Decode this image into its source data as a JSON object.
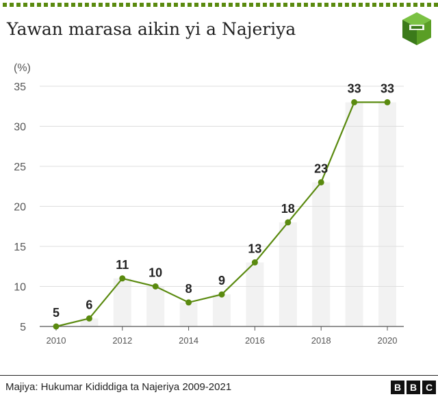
{
  "title": "Yawan marasa aikin yi a Najeriya",
  "source": "Majiya: Hukumar Kididdiga ta Najeriya 2009-2021",
  "brand": {
    "letters": [
      "B",
      "B",
      "C"
    ]
  },
  "logo_icon": "bbc-visual-journalism-cube-icon",
  "colors": {
    "line": "#5a8a0f",
    "marker": "#5a8a0f",
    "band": "#f2f2f2",
    "grid": "#dddddd",
    "accent_dash": "#5a8a0f"
  },
  "chart_data": {
    "type": "line",
    "unit_label": "(%)",
    "x": [
      2010,
      2011,
      2012,
      2013,
      2014,
      2015,
      2016,
      2017,
      2018,
      2019,
      2020
    ],
    "x_tick_labels": [
      "2010",
      "2012",
      "2014",
      "2016",
      "2018",
      "2020"
    ],
    "x_ticks": [
      2010,
      2012,
      2014,
      2016,
      2018,
      2020
    ],
    "values": [
      5,
      6,
      11,
      10,
      8,
      9,
      13,
      18,
      23,
      33,
      33
    ],
    "data_labels": [
      "5",
      "6",
      "11",
      "10",
      "8",
      "9",
      "13",
      "18",
      "23",
      "33",
      "33"
    ],
    "y_ticks": [
      5,
      10,
      15,
      20,
      25,
      30,
      35
    ],
    "ylim": [
      5,
      35
    ],
    "xlim": [
      2010,
      2020
    ],
    "grid": true,
    "background_bars": true
  }
}
